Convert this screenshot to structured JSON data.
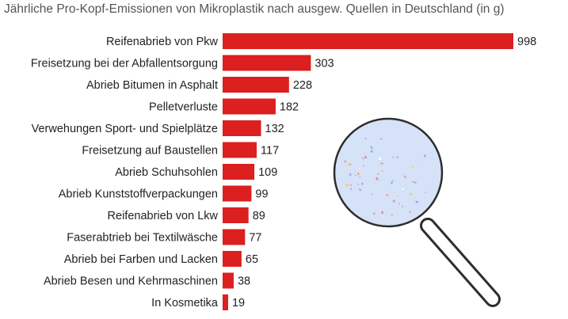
{
  "chart_data": {
    "type": "bar",
    "orientation": "horizontal",
    "title": "Jährliche Pro-Kopf-Emissionen von Mikroplastik nach ausgew. Quellen in Deutschland (in g)",
    "categories": [
      "Reifenabrieb von Pkw",
      "Freisetzung bei der Abfallentsorgung",
      "Abrieb Bitumen in Asphalt",
      "Pelletverluste",
      "Verwehungen Sport- und Spielplätze",
      "Freisetzung auf Baustellen",
      "Abrieb Schuhsohlen",
      "Abrieb Kunststoffverpackungen",
      "Reifenabrieb von Lkw",
      "Faserabtrieb bei Textilwäsche",
      "Abrieb bei Farben und Lacken",
      "Abrieb Besen und Kehrmaschinen",
      "In Kosmetika"
    ],
    "values": [
      998,
      303,
      228,
      182,
      132,
      117,
      109,
      99,
      89,
      77,
      65,
      38,
      19
    ],
    "xlim": [
      0,
      998
    ],
    "grid": false,
    "legend": "none",
    "bar_color": "#dc1f1f"
  },
  "illustration": {
    "icon": "magnifying-glass-icon",
    "lens_color": "#d6e2f7",
    "rim_color": "#2d2d2d"
  }
}
